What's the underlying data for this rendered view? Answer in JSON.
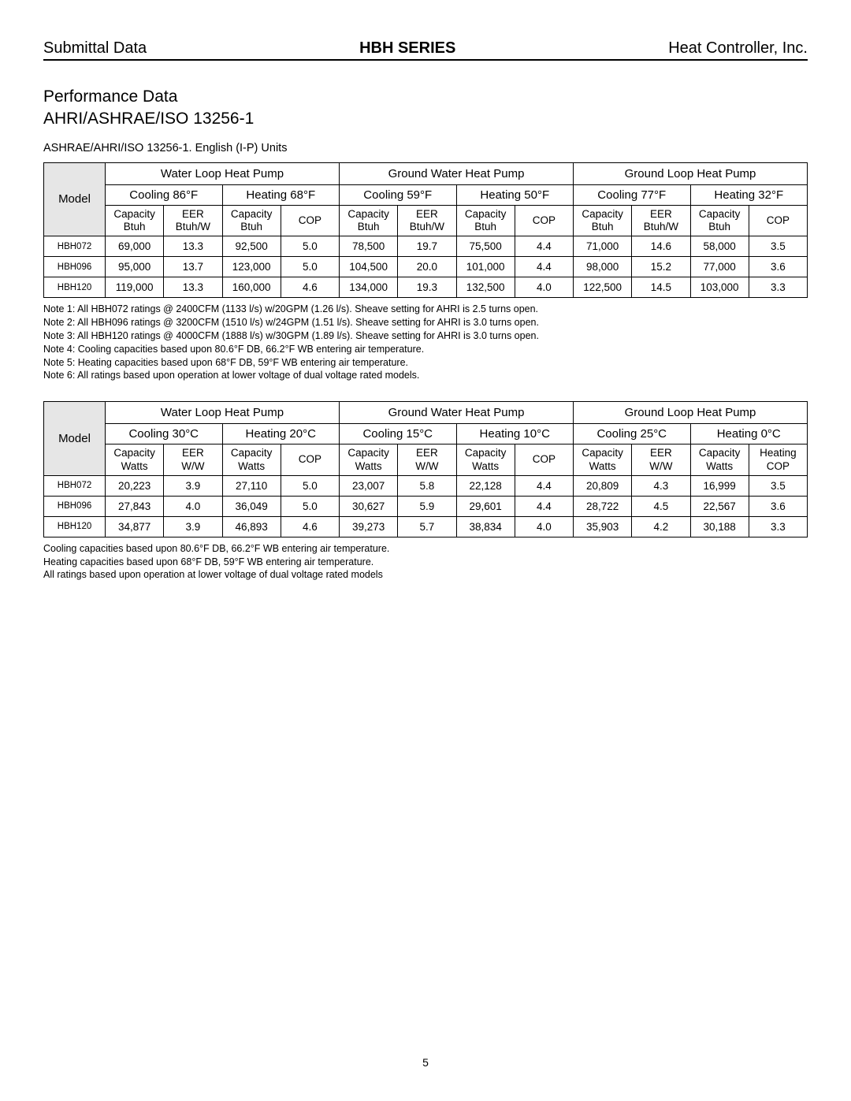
{
  "header": {
    "left": "Submittal Data",
    "center": "HBH SERIES",
    "right": "Heat Controller, Inc."
  },
  "section": {
    "title_line1": "Performance Data",
    "title_line2": "AHRI/ASHRAE/ISO 13256-1"
  },
  "table1": {
    "caption": "ASHRAE/AHRI/ISO 13256-1. English (I-P) Units",
    "model_label": "Model",
    "groups": [
      "Water Loop Heat Pump",
      "Ground Water Heat Pump",
      "Ground Loop Heat Pump"
    ],
    "conditions": [
      "Cooling 86°F",
      "Heating 68°F",
      "Cooling 59°F",
      "Heating 50°F",
      "Cooling 77°F",
      "Heating 32°F"
    ],
    "subheaders": [
      "Capacity Btuh",
      "EER Btuh/W",
      "Capacity Btuh",
      "COP",
      "Capacity Btuh",
      "EER Btuh/W",
      "Capacity Btuh",
      "COP",
      "Capacity Btuh",
      "EER Btuh/W",
      "Capacity Btuh",
      "COP"
    ],
    "rows": [
      {
        "model": "HBH072",
        "vals": [
          "69,000",
          "13.3",
          "92,500",
          "5.0",
          "78,500",
          "19.7",
          "75,500",
          "4.4",
          "71,000",
          "14.6",
          "58,000",
          "3.5"
        ]
      },
      {
        "model": "HBH096",
        "vals": [
          "95,000",
          "13.7",
          "123,000",
          "5.0",
          "104,500",
          "20.0",
          "101,000",
          "4.4",
          "98,000",
          "15.2",
          "77,000",
          "3.6"
        ]
      },
      {
        "model": "HBH120",
        "vals": [
          "119,000",
          "13.3",
          "160,000",
          "4.6",
          "134,000",
          "19.3",
          "132,500",
          "4.0",
          "122,500",
          "14.5",
          "103,000",
          "3.3"
        ]
      }
    ],
    "notes": [
      "Note 1: All HBH072 ratings @ 2400CFM (1133 l/s) w/20GPM (1.26 l/s).  Sheave setting for AHRI is 2.5 turns open.",
      "Note 2: All HBH096 ratings @ 3200CFM (1510 l/s) w/24GPM (1.51 l/s).  Sheave setting for AHRI is 3.0 turns open.",
      "Note 3: All HBH120 ratings @ 4000CFM (1888 l/s) w/30GPM (1.89 l/s).  Sheave setting for AHRI is 3.0 turns open.",
      "Note 4: Cooling capacities based upon 80.6°F DB, 66.2°F WB entering air temperature.",
      "Note 5: Heating capacities based upon 68°F DB, 59°F WB entering air temperature.",
      "Note 6: All ratings based upon operation at lower voltage of dual voltage rated models."
    ]
  },
  "table2": {
    "model_label": "Model",
    "groups": [
      "Water Loop Heat Pump",
      "Ground Water Heat Pump",
      "Ground Loop Heat Pump"
    ],
    "conditions": [
      "Cooling 30°C",
      "Heating 20°C",
      "Cooling 15°C",
      "Heating 10°C",
      "Cooling 25°C",
      "Heating 0°C"
    ],
    "subheaders": [
      "Capacity Watts",
      "EER W/W",
      "Capacity Watts",
      "COP",
      "Capacity Watts",
      "EER W/W",
      "Capacity Watts",
      "COP",
      "Capacity Watts",
      "EER W/W",
      "Capacity Watts",
      "Heating COP"
    ],
    "rows": [
      {
        "model": "HBH072",
        "vals": [
          "20,223",
          "3.9",
          "27,110",
          "5.0",
          "23,007",
          "5.8",
          "22,128",
          "4.4",
          "20,809",
          "4.3",
          "16,999",
          "3.5"
        ]
      },
      {
        "model": "HBH096",
        "vals": [
          "27,843",
          "4.0",
          "36,049",
          "5.0",
          "30,627",
          "5.9",
          "29,601",
          "4.4",
          "28,722",
          "4.5",
          "22,567",
          "3.6"
        ]
      },
      {
        "model": "HBH120",
        "vals": [
          "34,877",
          "3.9",
          "46,893",
          "4.6",
          "39,273",
          "5.7",
          "38,834",
          "4.0",
          "35,903",
          "4.2",
          "30,188",
          "3.3"
        ]
      }
    ],
    "notes": [
      "Cooling capacities based upon 80.6°F DB, 66.2°F WB entering air temperature.",
      "Heating capacities based upon 68°F DB, 59°F WB entering air temperature.",
      "All ratings based upon operation at lower voltage of dual voltage rated models"
    ]
  },
  "page_number": "5",
  "colors": {
    "shade": "#e6e6e6",
    "border": "#000000",
    "bg": "#ffffff"
  }
}
